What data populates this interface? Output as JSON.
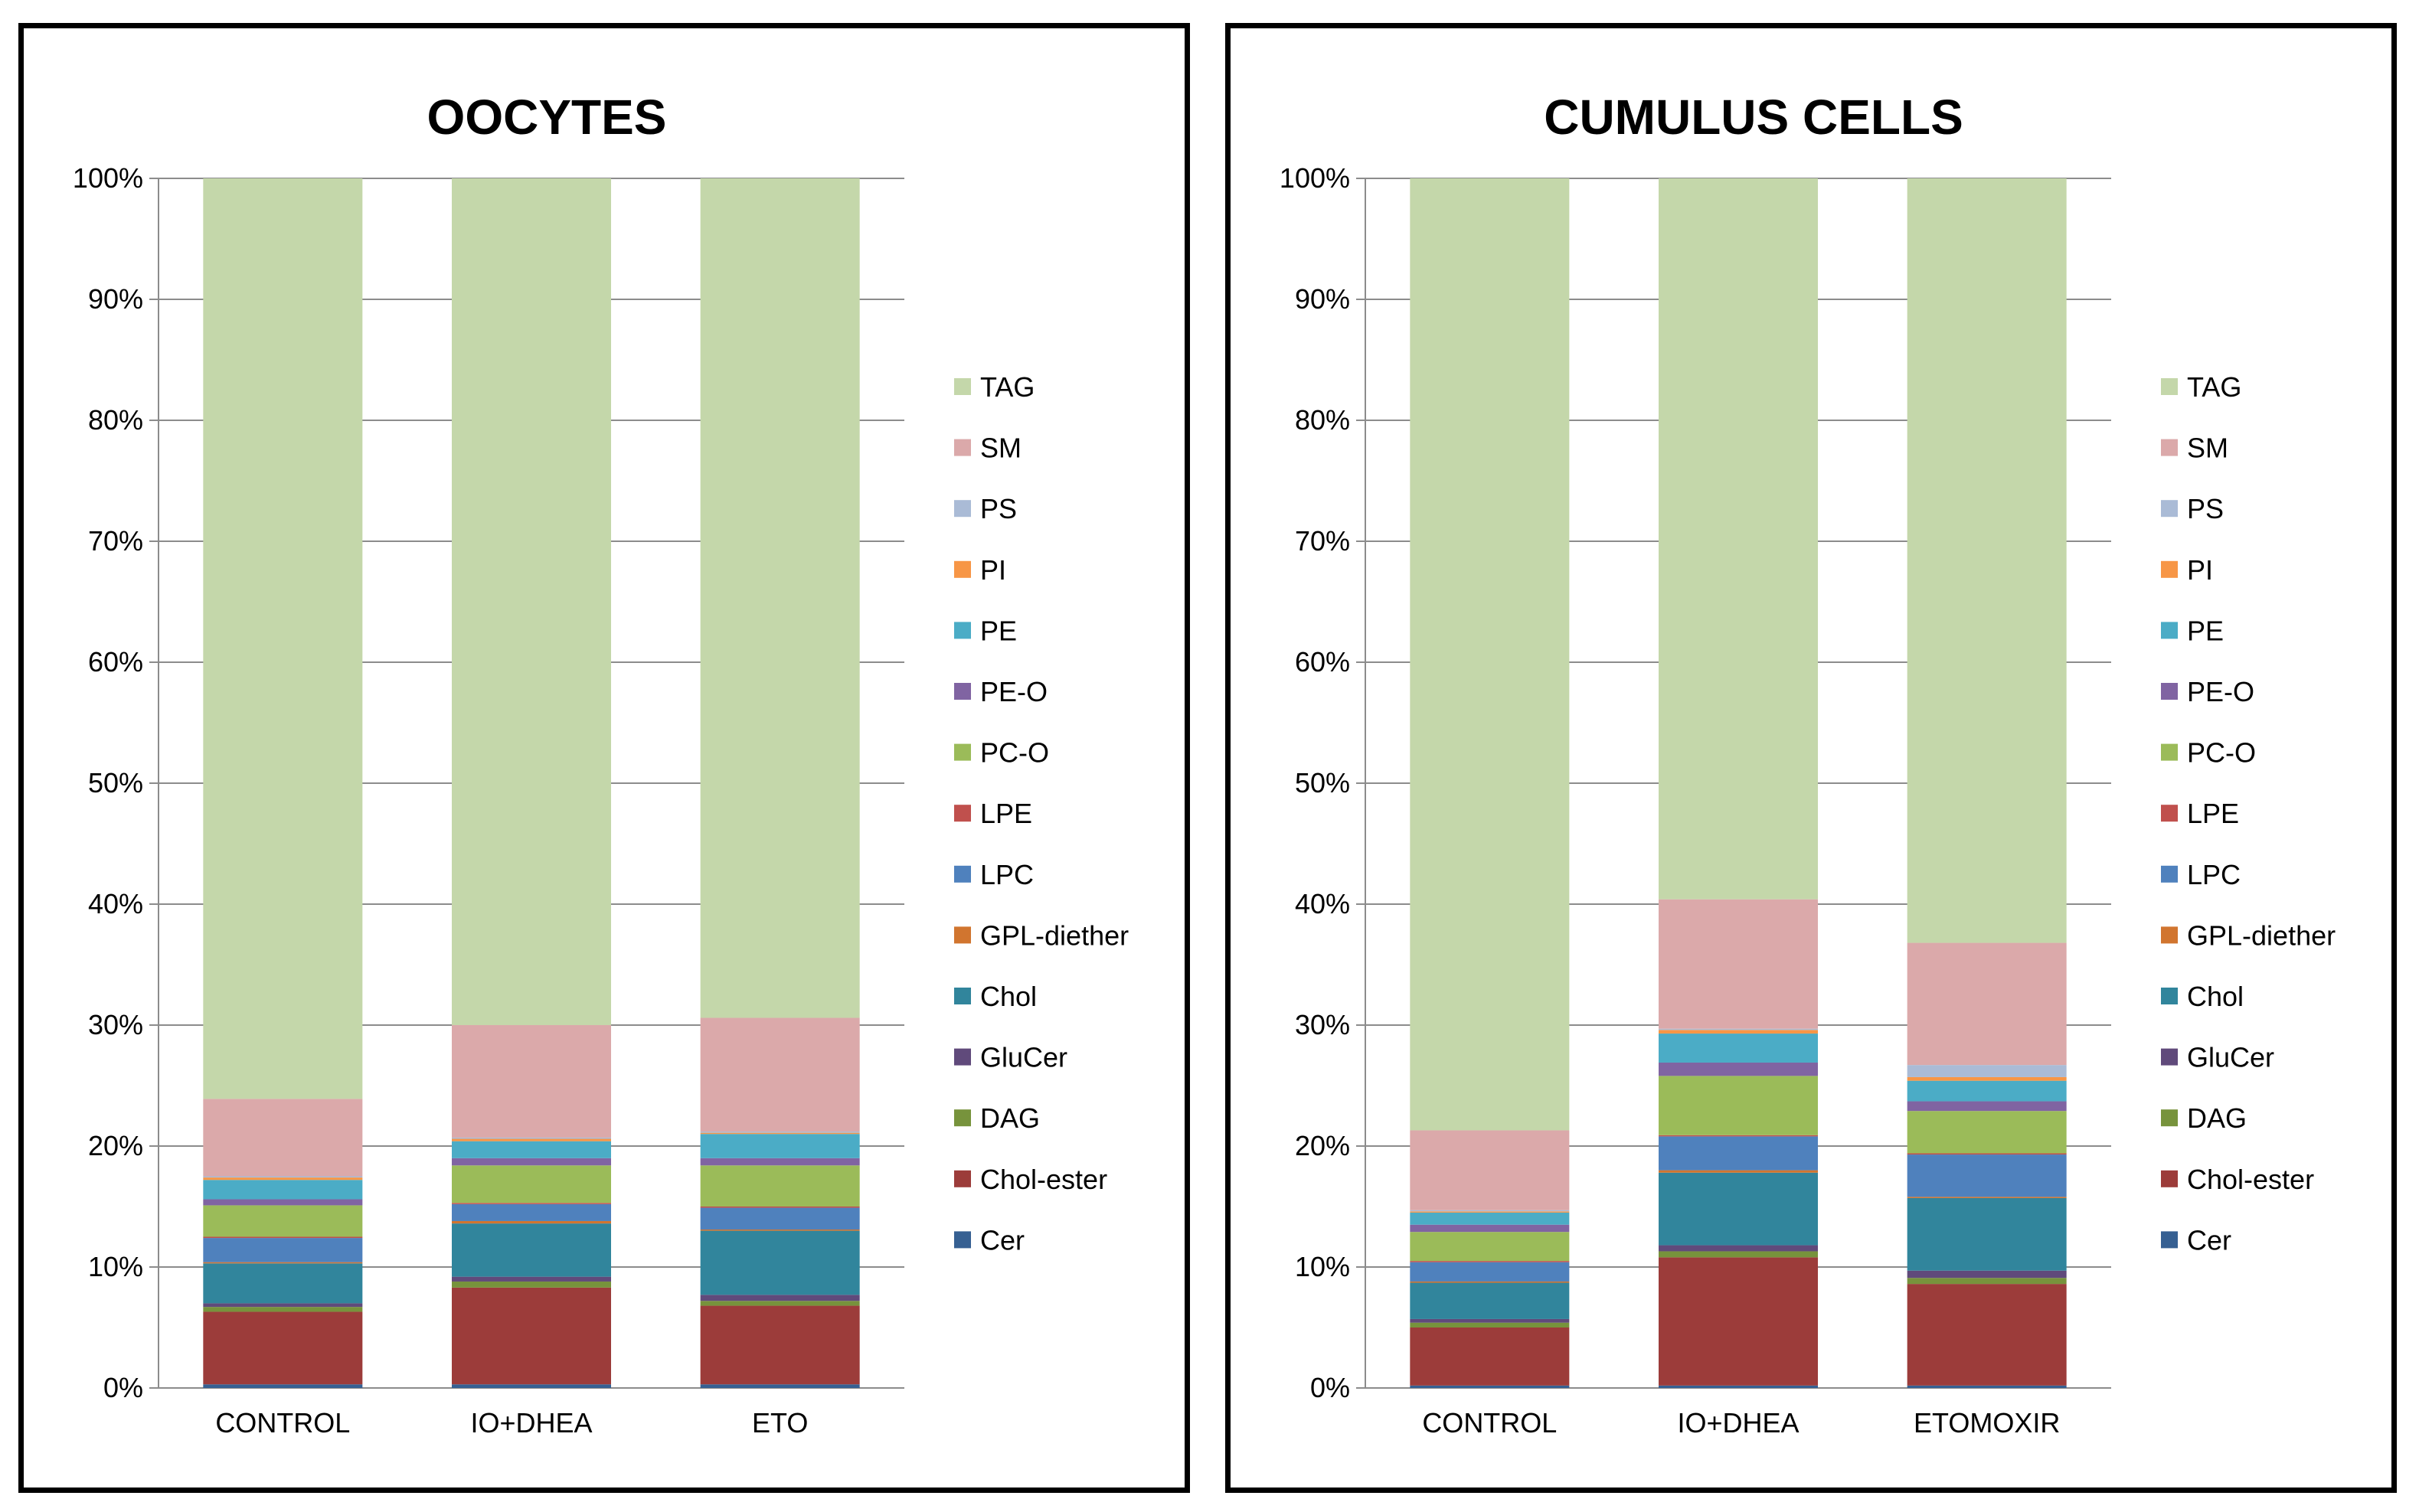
{
  "colors": {
    "TAG": "#c4d7aa",
    "SM": "#dba9aa",
    "PS": "#aabbd6",
    "PI": "#f79646",
    "PE": "#4bacc6",
    "PE-O": "#8064a2",
    "PC-O": "#9bbb59",
    "LPE": "#c0504d",
    "LPC": "#4f81bd",
    "GPL-diether": "#d1752f",
    "Chol": "#31859c",
    "GluCer": "#604a7b",
    "DAG": "#77933c",
    "Chol-ester": "#9c3c3a",
    "Cer": "#366092",
    "gridline": "#8c8c8c",
    "axis": "#8c8c8c"
  },
  "chart_data": [
    {
      "type": "bar",
      "stacked": "percent",
      "title": "OOCYTES",
      "xlabel": "",
      "ylabel": "",
      "ylim": [
        0,
        100
      ],
      "yticks": [
        "0%",
        "10%",
        "20%",
        "30%",
        "40%",
        "50%",
        "60%",
        "70%",
        "80%",
        "90%",
        "100%"
      ],
      "grid": true,
      "legend": "right",
      "legend_entries": [
        "TAG",
        "SM",
        "PS",
        "PI",
        "PE",
        "PE-O",
        "PC-O",
        "LPE",
        "LPC",
        "GPL-diether",
        "Chol",
        "GluCer",
        "DAG",
        "Chol-ester",
        "Cer"
      ],
      "categories": [
        "CONTROL",
        "IO+DHEA",
        "ETO"
      ],
      "series": [
        {
          "name": "Cer",
          "values": [
            0.3,
            0.3,
            0.3
          ]
        },
        {
          "name": "Chol-ester",
          "values": [
            6.0,
            8.0,
            6.5
          ]
        },
        {
          "name": "DAG",
          "values": [
            0.4,
            0.5,
            0.4
          ]
        },
        {
          "name": "GluCer",
          "values": [
            0.3,
            0.4,
            0.5
          ]
        },
        {
          "name": "Chol",
          "values": [
            3.3,
            4.4,
            5.3
          ]
        },
        {
          "name": "GPL-diether",
          "values": [
            0.1,
            0.2,
            0.1
          ]
        },
        {
          "name": "LPC",
          "values": [
            2.0,
            1.4,
            1.8
          ]
        },
        {
          "name": "LPE",
          "values": [
            0.1,
            0.1,
            0.1
          ]
        },
        {
          "name": "PC-O",
          "values": [
            2.6,
            3.1,
            3.4
          ]
        },
        {
          "name": "PE-O",
          "values": [
            0.5,
            0.6,
            0.6
          ]
        },
        {
          "name": "PE",
          "values": [
            1.6,
            1.4,
            2.0
          ]
        },
        {
          "name": "PI",
          "values": [
            0.2,
            0.2,
            0.1
          ]
        },
        {
          "name": "PS",
          "values": [
            0.1,
            0.1,
            0.1
          ]
        },
        {
          "name": "SM",
          "values": [
            6.4,
            9.3,
            9.4
          ]
        },
        {
          "name": "TAG",
          "values": [
            76.1,
            70.0,
            69.4
          ]
        }
      ]
    },
    {
      "type": "bar",
      "stacked": "percent",
      "title": "CUMULUS CELLS",
      "xlabel": "",
      "ylabel": "",
      "ylim": [
        0,
        100
      ],
      "yticks": [
        "0%",
        "10%",
        "20%",
        "30%",
        "40%",
        "50%",
        "60%",
        "70%",
        "80%",
        "90%",
        "100%"
      ],
      "grid": true,
      "legend": "right",
      "legend_entries": [
        "TAG",
        "SM",
        "PS",
        "PI",
        "PE",
        "PE-O",
        "PC-O",
        "LPE",
        "LPC",
        "GPL-diether",
        "Chol",
        "GluCer",
        "DAG",
        "Chol-ester",
        "Cer"
      ],
      "categories": [
        "CONTROL",
        "IO+DHEA",
        "ETOMOXIR"
      ],
      "series": [
        {
          "name": "Cer",
          "values": [
            0.2,
            0.2,
            0.2
          ]
        },
        {
          "name": "Chol-ester",
          "values": [
            4.8,
            10.6,
            8.4
          ]
        },
        {
          "name": "DAG",
          "values": [
            0.4,
            0.5,
            0.5
          ]
        },
        {
          "name": "GluCer",
          "values": [
            0.3,
            0.5,
            0.6
          ]
        },
        {
          "name": "Chol",
          "values": [
            3.0,
            6.0,
            6.0
          ]
        },
        {
          "name": "GPL-diether",
          "values": [
            0.1,
            0.2,
            0.1
          ]
        },
        {
          "name": "LPC",
          "values": [
            1.6,
            2.8,
            3.5
          ]
        },
        {
          "name": "LPE",
          "values": [
            0.1,
            0.1,
            0.1
          ]
        },
        {
          "name": "PC-O",
          "values": [
            2.4,
            4.9,
            3.5
          ]
        },
        {
          "name": "PE-O",
          "values": [
            0.6,
            1.1,
            0.8
          ]
        },
        {
          "name": "PE",
          "values": [
            1.0,
            2.4,
            1.7
          ]
        },
        {
          "name": "PI",
          "values": [
            0.1,
            0.3,
            0.3
          ]
        },
        {
          "name": "PS",
          "values": [
            0.1,
            0.1,
            1.0
          ]
        },
        {
          "name": "SM",
          "values": [
            6.6,
            10.7,
            10.1
          ]
        },
        {
          "name": "TAG",
          "values": [
            78.7,
            59.6,
            63.2
          ]
        }
      ]
    }
  ]
}
